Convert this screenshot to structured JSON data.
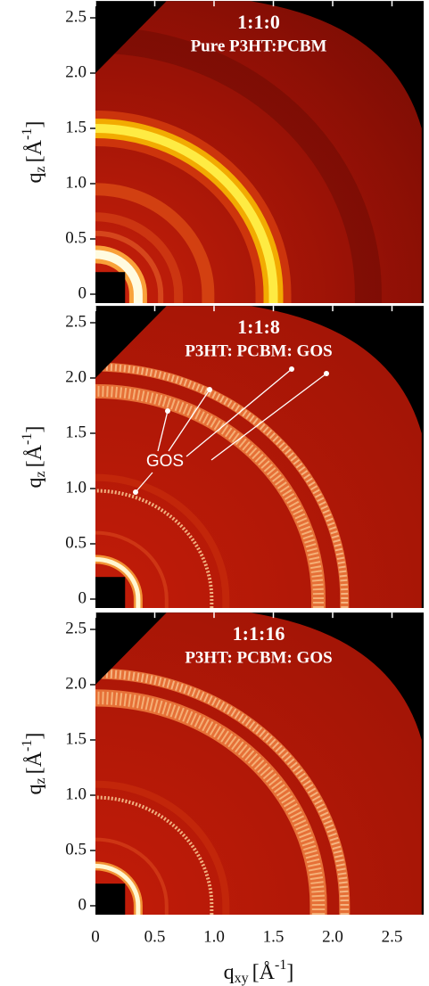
{
  "chart_data": [
    {
      "type": "image",
      "title": "1:1:0",
      "subtitle": "Pure P3HT:PCBM",
      "ylabel": [
        "q",
        "z",
        "[Å",
        "-1",
        "]"
      ],
      "xlim": [
        0,
        2.78
      ],
      "ylim": [
        0,
        2.62
      ],
      "xticks": [
        0,
        0.5,
        {
          "value": 1,
          "label": "1.0"
        },
        1.5,
        {
          "value": 2,
          "label": "2.0"
        },
        2.5
      ],
      "yticks": [
        0,
        0.5,
        {
          "value": 1,
          "label": "1.0"
        },
        1.5,
        {
          "value": 2,
          "label": "2.0"
        },
        2.5
      ]
    },
    {
      "type": "image",
      "title": "1:1:8",
      "subtitle": "P3HT: PCBM: GOS",
      "ylabel": [
        "q",
        "z",
        "[Å",
        "-1",
        "]"
      ],
      "annotation": "GOS",
      "xlim": [
        0,
        2.78
      ],
      "ylim": [
        0,
        2.62
      ],
      "xticks": [
        0,
        0.5,
        {
          "value": 1,
          "label": "1.0"
        },
        1.5,
        {
          "value": 2,
          "label": "2.0"
        },
        2.5
      ],
      "yticks": [
        0,
        0.5,
        {
          "value": 1,
          "label": "1.0"
        },
        1.5,
        {
          "value": 2,
          "label": "2.0"
        },
        2.5
      ]
    },
    {
      "type": "image",
      "title": "1:1:16",
      "subtitle": "P3HT: PCBM: GOS",
      "ylabel": [
        "q",
        "z",
        "[Å",
        "-1",
        "]"
      ],
      "xlabel": [
        "q",
        "xy",
        "[Å",
        "-1",
        "]"
      ],
      "xlim": [
        0,
        2.78
      ],
      "ylim": [
        0,
        2.62
      ],
      "xticks": [
        0,
        0.5,
        {
          "value": 1,
          "label": "1.0"
        },
        1.5,
        {
          "value": 2,
          "label": "2.0"
        },
        2.5
      ],
      "yticks": [
        0,
        0.5,
        {
          "value": 1,
          "label": "1.0"
        },
        1.5,
        {
          "value": 2,
          "label": "2.0"
        },
        2.5
      ]
    }
  ]
}
